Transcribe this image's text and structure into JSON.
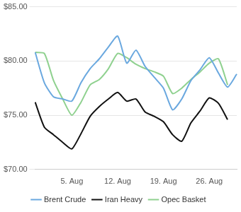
{
  "chart_data": {
    "type": "line",
    "categories": [
      null,
      null,
      null,
      null,
      "5. Aug",
      null,
      null,
      null,
      null,
      "12. Aug",
      null,
      null,
      null,
      null,
      "19. Aug",
      null,
      null,
      null,
      null,
      "26. Aug",
      null,
      null,
      null
    ],
    "series": [
      {
        "name": "Brent Crude",
        "color": "#6aa8df",
        "values": [
          80.8,
          78.0,
          76.7,
          76.5,
          76.3,
          78.0,
          79.3,
          80.2,
          81.3,
          82.3,
          79.8,
          81.0,
          79.5,
          78.5,
          77.5,
          75.5,
          76.5,
          78.2,
          79.2,
          80.3,
          78.9,
          77.6,
          78.8
        ]
      },
      {
        "name": "Iran Heavy",
        "color": "#111111",
        "values": [
          76.2,
          73.9,
          73.2,
          72.5,
          71.9,
          73.3,
          74.9,
          75.8,
          76.5,
          77.1,
          76.3,
          76.5,
          75.3,
          74.9,
          74.4,
          73.2,
          72.6,
          74.3,
          75.4,
          76.6,
          76.1,
          74.6,
          null
        ]
      },
      {
        "name": "Opec Basket",
        "color": "#8fd18f",
        "values": [
          80.8,
          80.7,
          78.2,
          76.5,
          75.0,
          76.2,
          77.8,
          78.3,
          79.3,
          80.7,
          80.3,
          79.7,
          79.3,
          79.0,
          78.6,
          77.0,
          77.5,
          78.3,
          79.0,
          79.8,
          80.2,
          77.8,
          null
        ]
      }
    ],
    "ylim": [
      70,
      85
    ],
    "yticks": [
      {
        "value": 70,
        "label": "$70.00"
      },
      {
        "value": 75,
        "label": "$75.00"
      },
      {
        "value": 80,
        "label": "$80.00"
      },
      {
        "value": 85,
        "label": "$85.00"
      }
    ],
    "grid": true,
    "legend": "bottom"
  }
}
